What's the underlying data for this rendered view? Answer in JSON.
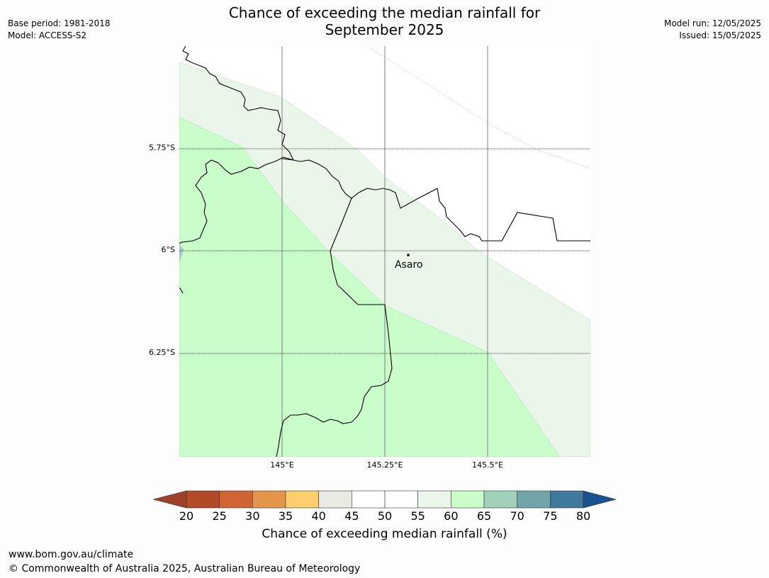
{
  "title_line1": "Chance of exceeding the median rainfall for",
  "title_line2": "September 2025",
  "meta_left": [
    "Base period: 1981-2018",
    "Model: ACCESS-S2"
  ],
  "meta_right": [
    "Model run: 12/05/2025",
    "Issued: 15/05/2025"
  ],
  "lat_labels": [
    "5.75°S",
    "6°S",
    "6.25°S"
  ],
  "lon_labels": [
    "145°E",
    "145.25°E",
    "145.5°E"
  ],
  "place": "Asaro",
  "colorbar": {
    "ticks": [
      "20",
      "25",
      "30",
      "35",
      "40",
      "45",
      "50",
      "55",
      "60",
      "65",
      "70",
      "75",
      "80"
    ],
    "colors": [
      "#a0402a",
      "#b34a25",
      "#d06432",
      "#e5954a",
      "#fdcf6a",
      "#ebe9e4",
      "#ffffff",
      "#ffffff",
      "#eaf6ea",
      "#c9fdc9",
      "#9fd1bb",
      "#6fa5a6",
      "#3f799b",
      "#1a5190"
    ],
    "label": "Chance of exceeding median rainfall (%)"
  },
  "footer": [
    "www.bom.gov.au/climate",
    "© Commonwealth of Australia 2025, Australian Bureau of Meteorology"
  ]
}
